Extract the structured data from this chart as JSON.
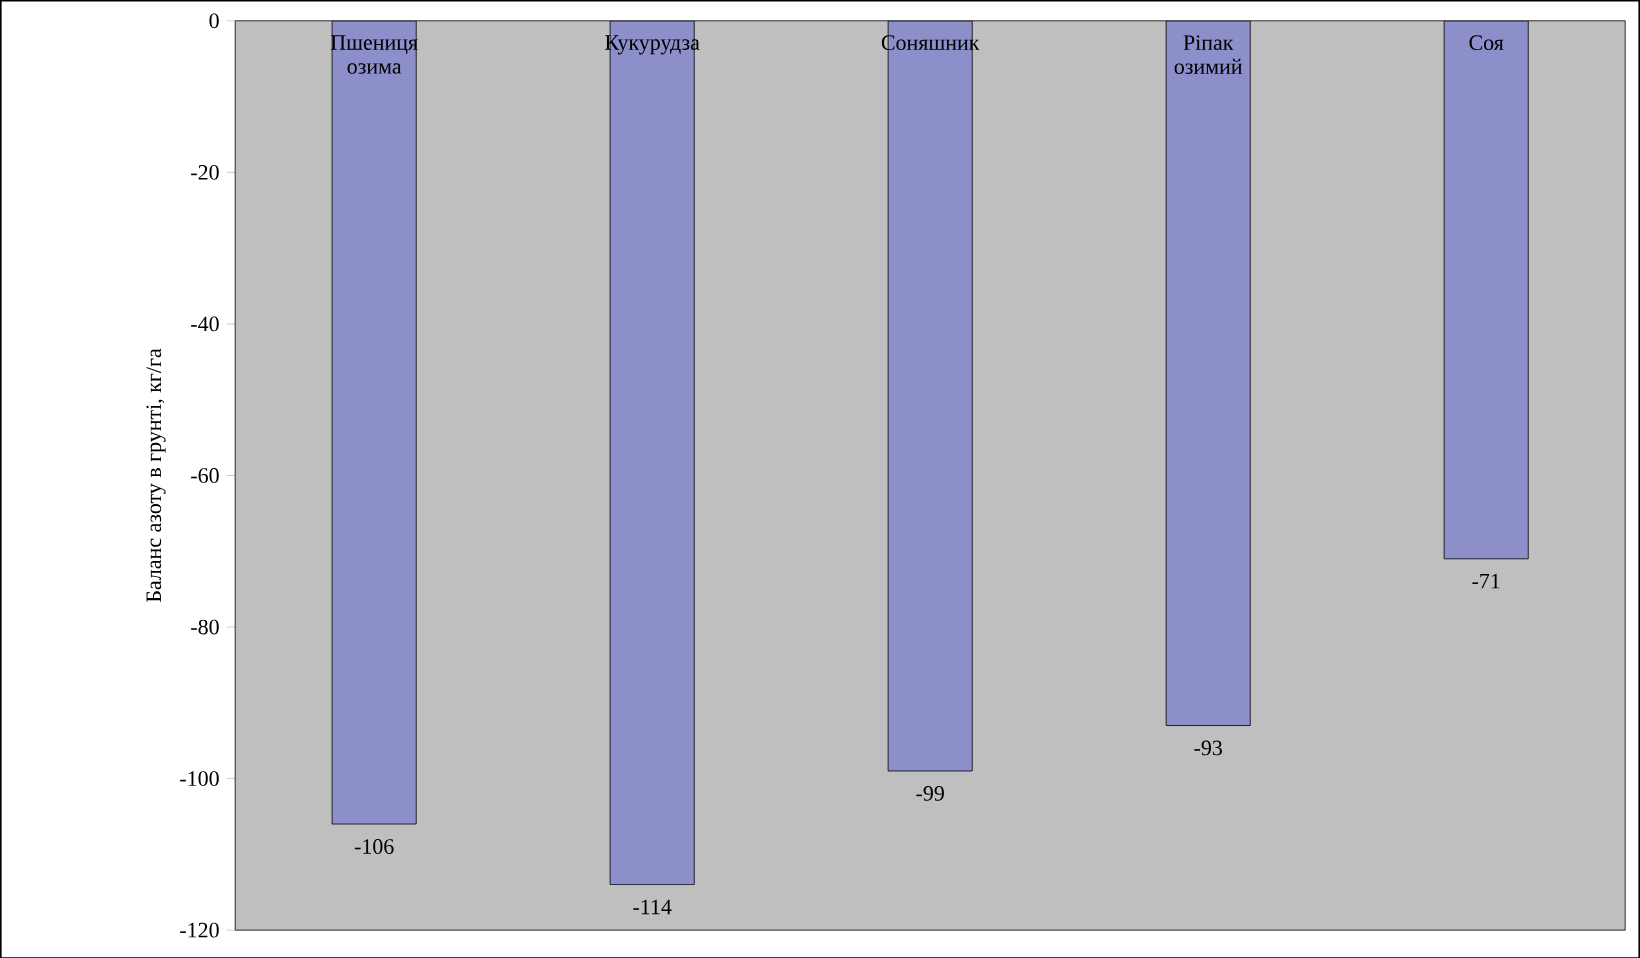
{
  "chart_data": {
    "type": "bar",
    "categories": [
      "Пшениця озима",
      "Кукурудза",
      "Соняшник",
      "Ріпак озимий",
      "Соя"
    ],
    "values": [
      -106,
      -114,
      -99,
      -93,
      -71
    ],
    "color": "#8c8fc9",
    "ylabel": "Баланс азоту в грунті, кг/га",
    "ylim": [
      -120,
      0
    ],
    "yticks": [
      -120,
      -100,
      -80,
      -60,
      -40,
      -20,
      0
    ],
    "data_labels": true
  }
}
